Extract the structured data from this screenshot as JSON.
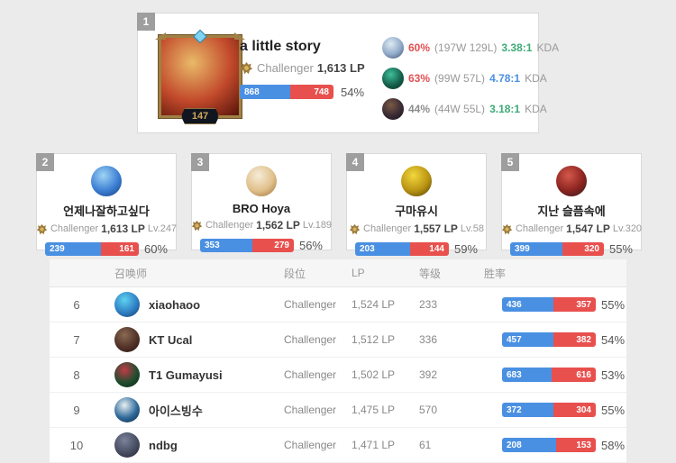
{
  "colors": {
    "bar-blue": "#4a90e2",
    "bar-red": "#e8504e",
    "badge-gray": "#9e9e9e",
    "rate-red": "#e25050",
    "rate-gray": "#8d8d8d",
    "kda-green": "#3caa77",
    "kda-blue": "#4a90e2"
  },
  "top_player": {
    "rank": "1",
    "name": "a little story",
    "tier": "Challenger",
    "lp": "1,613 LP",
    "level": "147",
    "wins": "868",
    "losses": "748",
    "win_rate": "54%",
    "avatar": [
      "#e9ba69",
      "#c2492b",
      "#561309"
    ],
    "champions": [
      {
        "rate": "60%",
        "rate_color": "#e25050",
        "record": "(197W 129L)",
        "kda": "3.38:1",
        "kda_color": "#3caa77",
        "kda_label": "KDA",
        "avatar": [
          "#dfeaf2",
          "#8fa9c9",
          "#3a4a66"
        ]
      },
      {
        "rate": "63%",
        "rate_color": "#e25050",
        "record": "(99W 57L)",
        "kda": "4.78:1",
        "kda_color": "#4a90e2",
        "kda_label": "KDA",
        "avatar": [
          "#3fbf9a",
          "#15604c",
          "#072e23"
        ]
      },
      {
        "rate": "44%",
        "rate_color": "#8d8d8d",
        "record": "(44W 55L)",
        "kda": "3.18:1",
        "kda_color": "#3caa77",
        "kda_label": "KDA",
        "avatar": [
          "#7a5a45",
          "#3a2a33",
          "#14121c"
        ]
      }
    ]
  },
  "cards": [
    {
      "rank": "2",
      "name": "언제나잘하고싶다",
      "tier": "Challenger",
      "lp": "1,613 LP",
      "level": "Lv.247",
      "wins": "239",
      "losses": "161",
      "win_rate": "60%",
      "avatar": [
        "#9fd4f5",
        "#3d7fd4",
        "#123c7a"
      ]
    },
    {
      "rank": "3",
      "name": "BRO Hoya",
      "tier": "Challenger",
      "lp": "1,562 LP",
      "level": "Lv.189",
      "wins": "353",
      "losses": "279",
      "win_rate": "56%",
      "avatar": [
        "#f6ecd8",
        "#e0c08b",
        "#9a6b35"
      ]
    },
    {
      "rank": "4",
      "name": "구마유시",
      "tier": "Challenger",
      "lp": "1,557 LP",
      "level": "Lv.58",
      "wins": "203",
      "losses": "144",
      "win_rate": "59%",
      "avatar": [
        "#f2d73c",
        "#b99413",
        "#4a3a05"
      ]
    },
    {
      "rank": "5",
      "name": "지난 슬픔속에",
      "tier": "Challenger",
      "lp": "1,547 LP",
      "level": "Lv.320",
      "wins": "399",
      "losses": "320",
      "win_rate": "55%",
      "avatar": [
        "#d4584a",
        "#8c2420",
        "#241b1e"
      ]
    }
  ],
  "table": {
    "headers": {
      "summoner": "召唤师",
      "tier": "段位",
      "lp": "LP",
      "level": "等级",
      "winrate": "胜率"
    },
    "rows": [
      {
        "rank": "6",
        "name": "xiaohaoo",
        "tier": "Challenger",
        "lp": "1,524 LP",
        "level": "233",
        "wins": "436",
        "losses": "357",
        "win_rate": "55%",
        "avatar": [
          "#5fd2f0",
          "#2f7fc4",
          "#133a63"
        ]
      },
      {
        "rank": "7",
        "name": "KT Ucal",
        "tier": "Challenger",
        "lp": "1,512 LP",
        "level": "336",
        "wins": "457",
        "losses": "382",
        "win_rate": "54%",
        "avatar": [
          "#8a6a52",
          "#523228",
          "#241410"
        ]
      },
      {
        "rank": "8",
        "name": "T1 Gumayusi",
        "tier": "Challenger",
        "lp": "1,502 LP",
        "level": "392",
        "wins": "683",
        "losses": "616",
        "win_rate": "53%",
        "avatar": [
          "#c23a47",
          "#1f4d2e",
          "#0c2415"
        ]
      },
      {
        "rank": "9",
        "name": "아이스빙수",
        "tier": "Challenger",
        "lp": "1,475 LP",
        "level": "570",
        "wins": "372",
        "losses": "304",
        "win_rate": "55%",
        "avatar": [
          "#e8f0f2",
          "#2f6a9a",
          "#0e2238"
        ]
      },
      {
        "rank": "10",
        "name": "ndbg",
        "tier": "Challenger",
        "lp": "1,471 LP",
        "level": "61",
        "wins": "208",
        "losses": "153",
        "win_rate": "58%",
        "avatar": [
          "#7b8299",
          "#474d62",
          "#20232e"
        ]
      }
    ]
  }
}
